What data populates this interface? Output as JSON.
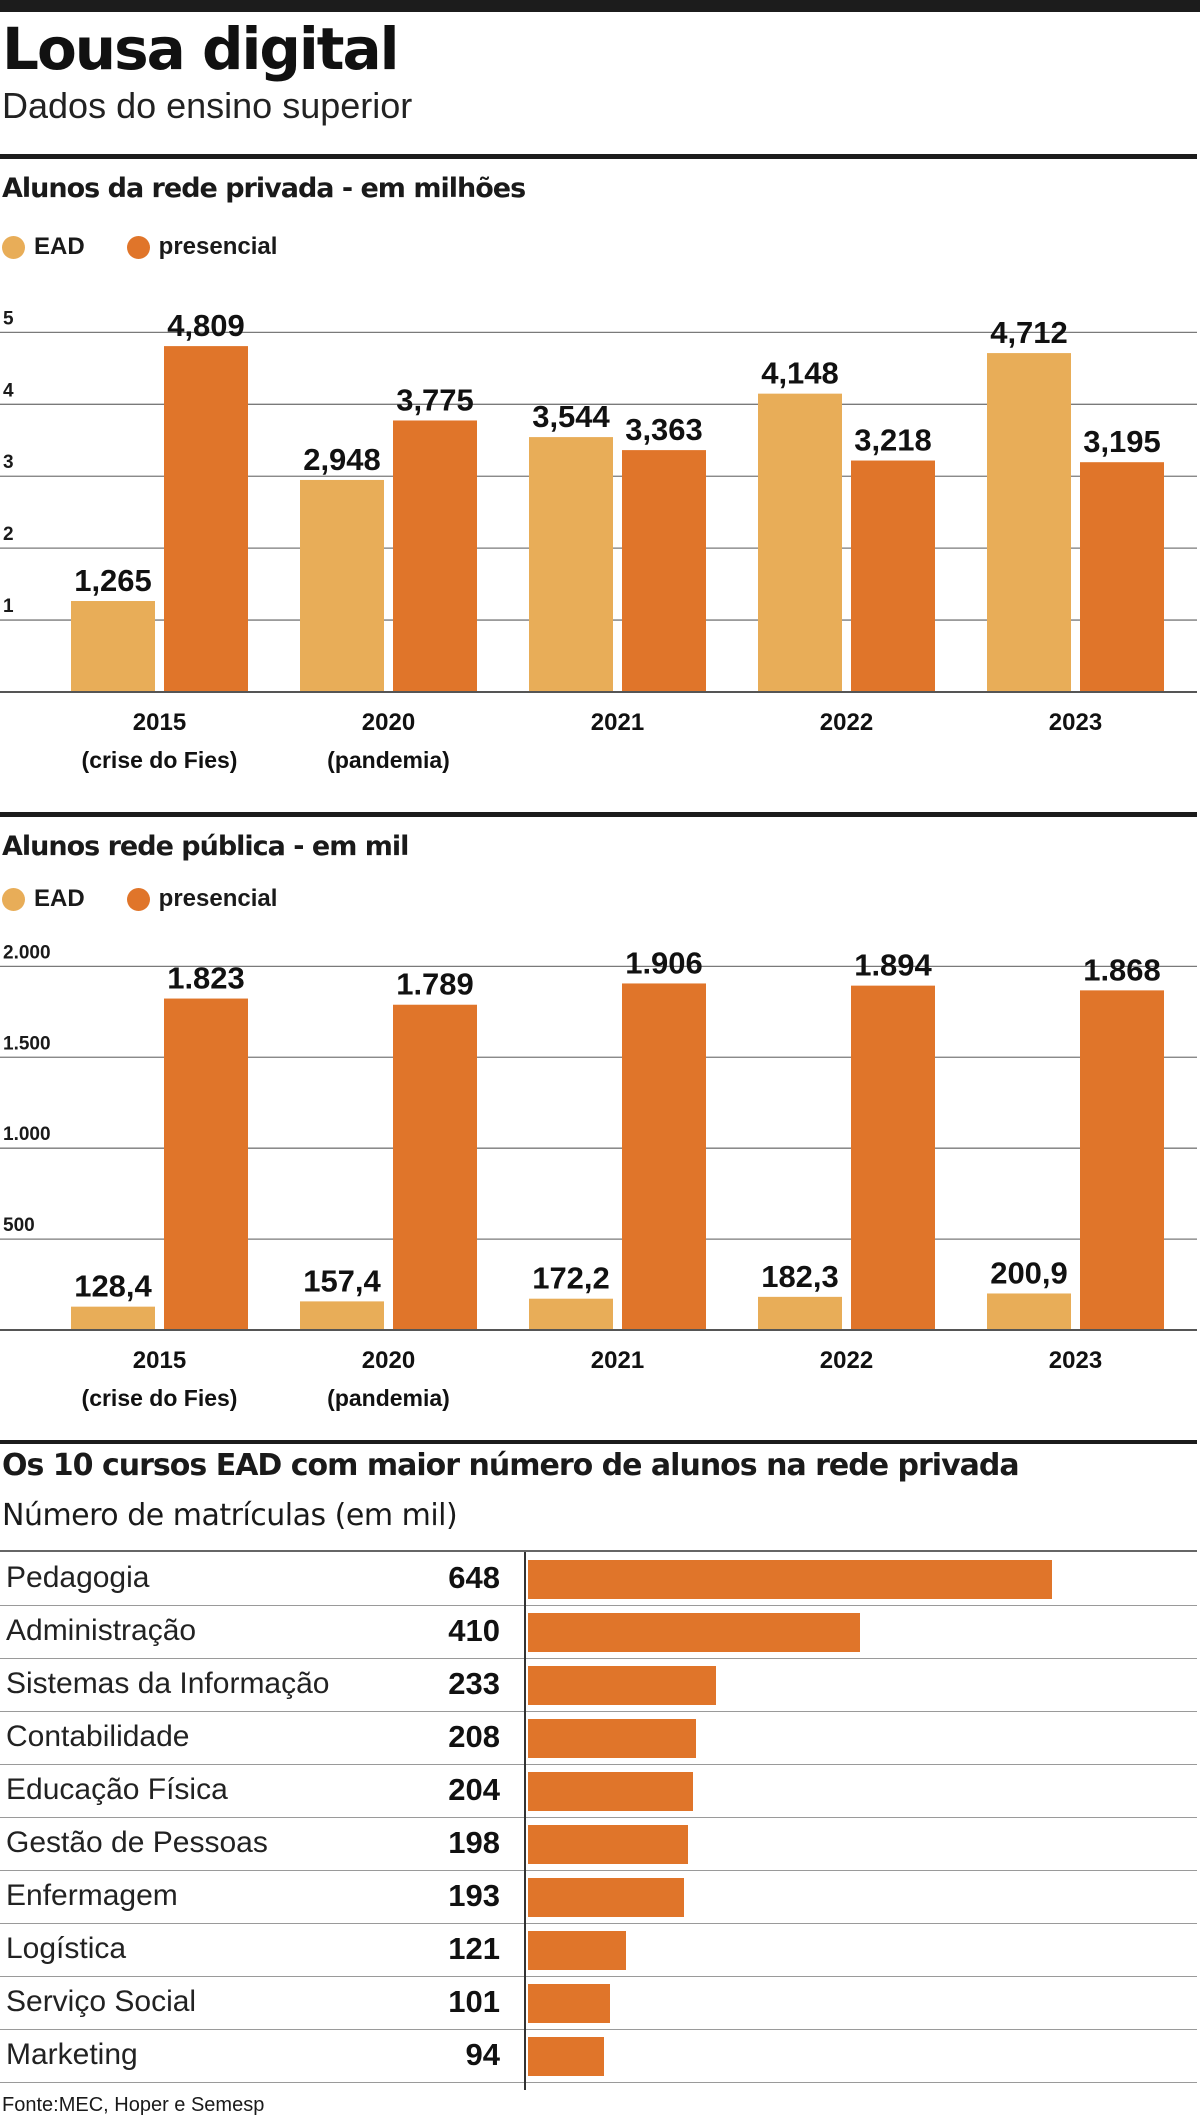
{
  "header": {
    "title": "Lousa digital",
    "subtitle": "Dados do ensino superior"
  },
  "colors": {
    "ead": "#e8ad58",
    "presencial": "#e0752a",
    "rule": "#1c1c1c",
    "grid": "#7a7a7a"
  },
  "chart_data": [
    {
      "type": "bar",
      "title": "Alunos da rede privada - em milhões",
      "legend": [
        "EAD",
        "presencial"
      ],
      "categories": [
        "2015",
        "2020",
        "2021",
        "2022",
        "2023"
      ],
      "category_notes": [
        "(crise do Fies)",
        "(pandemia)",
        "",
        "",
        ""
      ],
      "yticks": [
        {
          "value": 1,
          "label": "1"
        },
        {
          "value": 2,
          "label": "2"
        },
        {
          "value": 3,
          "label": "3"
        },
        {
          "value": 4,
          "label": "4"
        },
        {
          "value": 5,
          "label": "5"
        }
      ],
      "ylim": [
        0,
        5.45
      ],
      "series": [
        {
          "name": "EAD",
          "values": [
            1.265,
            2.948,
            3.544,
            4.148,
            4.712
          ],
          "labels": [
            "1,265",
            "2,948",
            "3,544",
            "4,148",
            "4,712"
          ]
        },
        {
          "name": "presencial",
          "values": [
            4.809,
            3.775,
            3.363,
            3.218,
            3.195
          ],
          "labels": [
            "4,809",
            "3,775",
            "3,363",
            "3,218",
            "3,195"
          ]
        }
      ]
    },
    {
      "type": "bar",
      "title": "Alunos rede pública - em mil",
      "legend": [
        "EAD",
        "presencial"
      ],
      "categories": [
        "2015",
        "2020",
        "2021",
        "2022",
        "2023"
      ],
      "category_notes": [
        "(crise do Fies)",
        "(pandemia)",
        "",
        "",
        ""
      ],
      "yticks": [
        {
          "value": 500,
          "label": "500"
        },
        {
          "value": 1000,
          "label": "1.000"
        },
        {
          "value": 1500,
          "label": "1.500"
        },
        {
          "value": 2000,
          "label": "2.000"
        }
      ],
      "ylim": [
        0,
        2090
      ],
      "series": [
        {
          "name": "EAD",
          "values": [
            128.4,
            157.4,
            172.2,
            182.3,
            200.9
          ],
          "labels": [
            "128,4",
            "157,4",
            "172,2",
            "182,3",
            "200,9"
          ]
        },
        {
          "name": "presencial",
          "values": [
            1823,
            1789,
            1906,
            1894,
            1868
          ],
          "labels": [
            "1.823",
            "1.789",
            "1.906",
            "1.894",
            "1.868"
          ]
        }
      ]
    },
    {
      "type": "bar",
      "orientation": "horizontal",
      "title": "Os 10 cursos EAD com maior número de alunos na rede privada",
      "subtitle": "Número de matrículas (em mil)",
      "max": 648,
      "items": [
        {
          "label": "Pedagogia",
          "value": 648
        },
        {
          "label": "Administração",
          "value": 410
        },
        {
          "label": "Sistemas da Informação",
          "value": 233
        },
        {
          "label": "Contabilidade",
          "value": 208
        },
        {
          "label": "Educação Física",
          "value": 204
        },
        {
          "label": "Gestão de Pessoas",
          "value": 198
        },
        {
          "label": "Enfermagem",
          "value": 193
        },
        {
          "label": "Logística",
          "value": 121
        },
        {
          "label": "Serviço Social",
          "value": 101
        },
        {
          "label": "Marketing",
          "value": 94
        }
      ]
    }
  ],
  "footer": {
    "source": "Fonte:MEC, Hoper e Semesp"
  }
}
